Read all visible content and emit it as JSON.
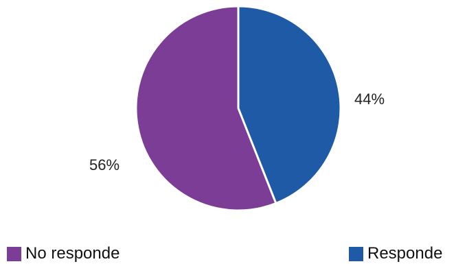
{
  "chart_data": {
    "type": "pie",
    "title": "",
    "slices": [
      {
        "name": "Responde",
        "value": 44,
        "label": "44%",
        "color": "#1f5aa6"
      },
      {
        "name": "No responde",
        "value": 56,
        "label": "56%",
        "color": "#7b3d96"
      }
    ],
    "start_angle": "12 o'clock",
    "direction": "clockwise",
    "legend_position": "bottom",
    "legend_order": [
      "No responde",
      "Responde"
    ]
  }
}
